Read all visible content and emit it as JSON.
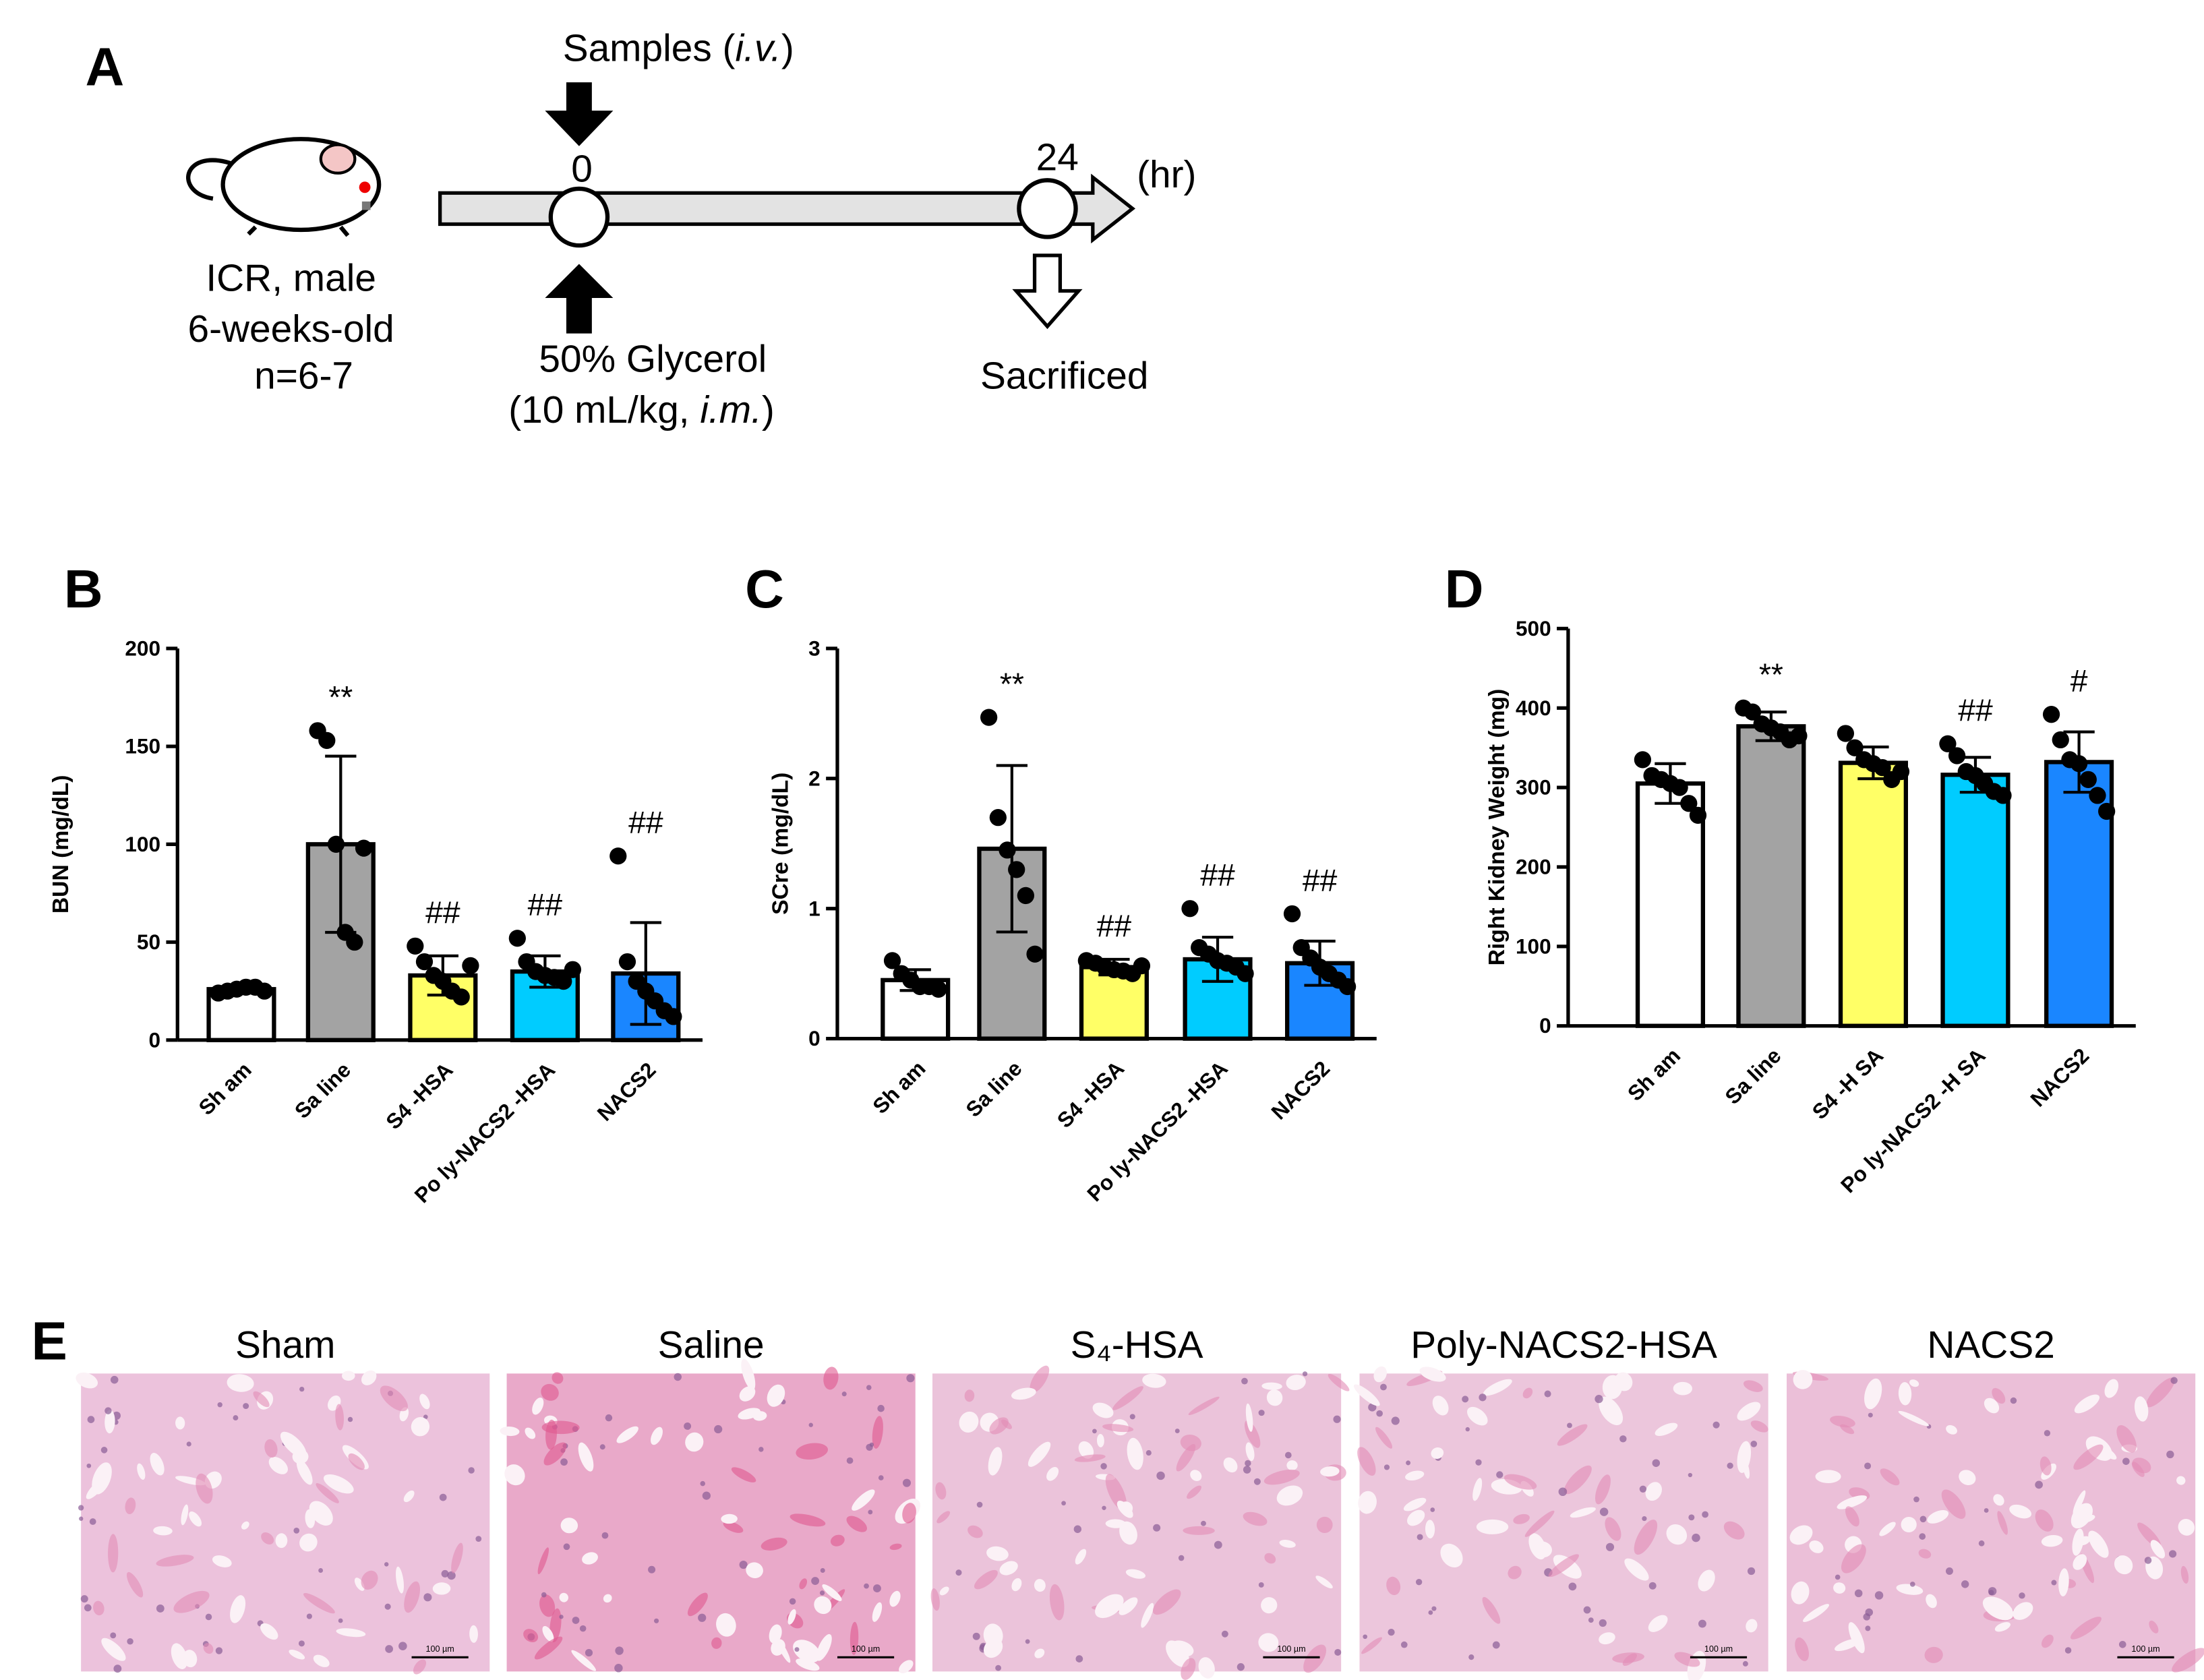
{
  "panel_letters": [
    "A",
    "B",
    "C",
    "D",
    "E"
  ],
  "diagram": {
    "samples": [
      "Samples (",
      "i.v.",
      ")"
    ],
    "time_start": "0",
    "time_end": "24",
    "time_unit": "(hr)",
    "animal": [
      "ICR, male",
      "6-weeks-old",
      "n=6-7"
    ],
    "glycerol": [
      "50% Glycerol",
      "(10 mL/kg, ",
      "i.m.",
      ")"
    ],
    "endpoint": "Sacrificed"
  },
  "chart_data": [
    {
      "type": "bar",
      "ylabel": "BUN (mg/dL)",
      "categories": [
        "Sh am",
        "Sa line",
        "S4 -HSA",
        "Po ly-NACS2 -HSA",
        "NACS2"
      ],
      "colors": [
        "#ffffff",
        "#a3a3a3",
        "#ffff66",
        "#00ccff",
        "#1a86ff"
      ],
      "values": [
        26,
        100,
        33,
        35,
        34
      ],
      "errors": [
        2,
        45,
        10,
        8,
        26
      ],
      "points": [
        [
          24,
          25,
          26,
          27,
          27,
          25
        ],
        [
          158,
          153,
          100,
          55,
          50,
          98
        ],
        [
          48,
          40,
          33,
          30,
          25,
          22,
          38
        ],
        [
          52,
          40,
          35,
          33,
          32,
          30,
          36
        ],
        [
          94,
          40,
          30,
          25,
          20,
          15,
          12
        ]
      ],
      "annotations": [
        null,
        "**",
        "##",
        "##",
        "##"
      ],
      "ylim": [
        0,
        200
      ],
      "yticks": [
        0,
        50,
        100,
        150,
        200
      ]
    },
    {
      "type": "bar",
      "ylabel": "SCre (mg/dL)",
      "categories": [
        "Sh am",
        "Sa line",
        "S4 -HSA",
        "Po ly-NACS2 -HSA",
        "NACS2"
      ],
      "colors": [
        "#ffffff",
        "#a3a3a3",
        "#ffff66",
        "#00ccff",
        "#1a86ff"
      ],
      "values": [
        0.45,
        1.46,
        0.55,
        0.61,
        0.58
      ],
      "errors": [
        0.08,
        0.64,
        0.06,
        0.17,
        0.17
      ],
      "points": [
        [
          0.6,
          0.5,
          0.45,
          0.4,
          0.4,
          0.38
        ],
        [
          2.47,
          1.7,
          1.45,
          1.3,
          1.1,
          0.65
        ],
        [
          0.6,
          0.58,
          0.55,
          0.53,
          0.52,
          0.5,
          0.56
        ],
        [
          1.0,
          0.7,
          0.65,
          0.6,
          0.58,
          0.55,
          0.5
        ],
        [
          0.96,
          0.7,
          0.62,
          0.55,
          0.5,
          0.45,
          0.4
        ]
      ],
      "annotations": [
        null,
        "**",
        "##",
        "##",
        "##"
      ],
      "ylim": [
        0,
        3
      ],
      "yticks": [
        0,
        1,
        2,
        3
      ]
    },
    {
      "type": "bar",
      "ylabel": "Right Kidney Weight (mg)",
      "categories": [
        "Sh am",
        "Sa line",
        "S4 -H SA",
        "Po ly-NACS2 -H SA",
        "NACS2"
      ],
      "colors": [
        "#ffffff",
        "#a3a3a3",
        "#ffff66",
        "#00ccff",
        "#1a86ff"
      ],
      "values": [
        305,
        377,
        331,
        316,
        332
      ],
      "errors": [
        25,
        18,
        20,
        22,
        38
      ],
      "points": [
        [
          335,
          315,
          310,
          305,
          300,
          280,
          265
        ],
        [
          400,
          395,
          380,
          375,
          370,
          360,
          365
        ],
        [
          368,
          350,
          335,
          330,
          325,
          310,
          320
        ],
        [
          355,
          340,
          320,
          315,
          305,
          295,
          290
        ],
        [
          392,
          360,
          335,
          330,
          310,
          290,
          270
        ]
      ],
      "annotations": [
        null,
        "**",
        null,
        "##",
        "#"
      ],
      "ylim": [
        0,
        500
      ],
      "yticks": [
        0,
        100,
        200,
        300,
        400,
        500
      ]
    }
  ],
  "histology": {
    "labels": [
      "Sham",
      "Saline",
      "S₄-HSA",
      "Poly-NACS2-HSA",
      "NACS2"
    ],
    "scale_bar": "100 µm"
  }
}
